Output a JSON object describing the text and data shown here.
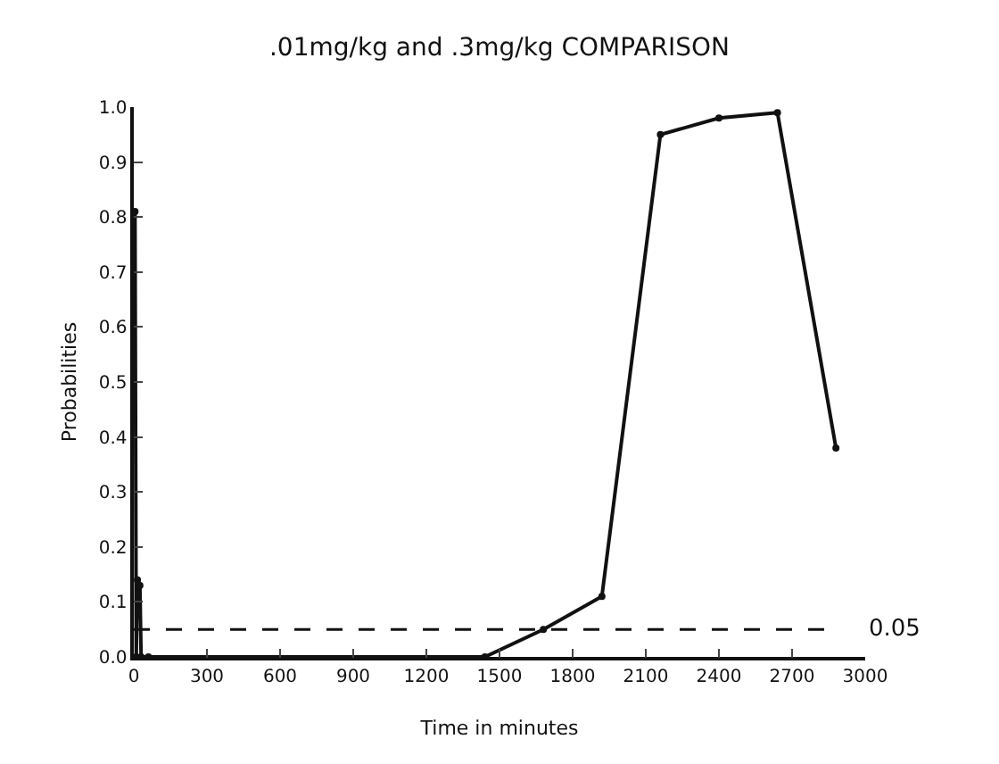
{
  "chart_data": {
    "type": "line",
    "title": ".01mg/kg and .3mg/kg COMPARISON",
    "xlabel": "Time in minutes",
    "ylabel": "Probabilities",
    "x": [
      5,
      10,
      15,
      25,
      30,
      60,
      1440,
      1680,
      1920,
      2160,
      2400,
      2640,
      2880
    ],
    "series": [
      {
        "color": "#111111",
        "values": [
          0.81,
          0.0,
          0.14,
          0.13,
          0.0,
          0.0,
          0.0,
          0.05,
          0.11,
          0.95,
          0.98,
          0.99,
          0.38
        ]
      }
    ],
    "xlim": [
      0,
      3000
    ],
    "xticks": [
      0,
      300,
      600,
      900,
      1200,
      1500,
      1800,
      2100,
      2400,
      2700,
      3000
    ],
    "ylim": [
      0,
      1.0
    ],
    "yticks": [
      {
        "value": 0,
        "label": "0.0"
      },
      {
        "value": 0.1,
        "label": "0.1"
      },
      {
        "value": 0.2,
        "label": "0.2"
      },
      {
        "value": 0.3,
        "label": "0.3"
      },
      {
        "value": 0.4,
        "label": "0.4"
      },
      {
        "value": 0.5,
        "label": "0.5"
      },
      {
        "value": 0.6,
        "label": "0.6"
      },
      {
        "value": 0.7,
        "label": "0.7"
      },
      {
        "value": 0.8,
        "label": "0.8"
      },
      {
        "value": 0.9,
        "label": "0.9"
      },
      {
        "value": 1.0,
        "label": "1.0"
      }
    ],
    "ref_lines": [
      {
        "axis": "y",
        "value": 0.05,
        "label": "0.05",
        "line_style": "dashed",
        "color": "#111111"
      }
    ],
    "grid": false,
    "marker": "circle",
    "line_style": "solid"
  }
}
